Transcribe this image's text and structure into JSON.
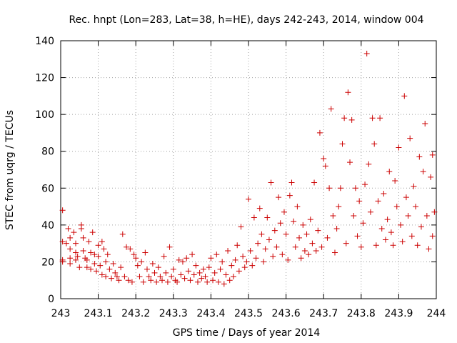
{
  "chart_data": {
    "type": "scatter",
    "title": "Rec. hnpt (Lon=283, Lat=38, h=HE), days 242-243, 2014, window 004",
    "xlabel": "GPS time / Days of year 2014",
    "ylabel": "STEC from uqrg / TECUs",
    "xlim": [
      243,
      244
    ],
    "ylim": [
      0,
      140
    ],
    "xticks": [
      "243",
      "243.1",
      "243.2",
      "243.3",
      "243.4",
      "243.5",
      "243.6",
      "243.7",
      "243.8",
      "243.9",
      "244"
    ],
    "yticks": [
      "0",
      "20",
      "40",
      "60",
      "80",
      "100",
      "120",
      "140"
    ],
    "grid": true,
    "marker": "plus",
    "color": "#cc0000",
    "series": [
      {
        "points": [
          [
            243.005,
            48
          ],
          [
            243.005,
            31
          ],
          [
            243.005,
            21
          ],
          [
            243.005,
            20
          ],
          [
            243.015,
            30
          ],
          [
            243.02,
            38
          ],
          [
            243.025,
            33
          ],
          [
            243.025,
            27
          ],
          [
            243.025,
            22
          ],
          [
            243.025,
            19
          ],
          [
            243.035,
            36
          ],
          [
            243.04,
            30
          ],
          [
            243.04,
            25
          ],
          [
            243.04,
            21
          ],
          [
            243.045,
            23
          ],
          [
            243.05,
            17
          ],
          [
            243.055,
            40
          ],
          [
            243.055,
            38
          ],
          [
            243.06,
            33
          ],
          [
            243.06,
            26
          ],
          [
            243.065,
            22
          ],
          [
            243.07,
            21
          ],
          [
            243.07,
            17
          ],
          [
            243.075,
            31
          ],
          [
            243.08,
            25
          ],
          [
            243.08,
            16
          ],
          [
            243.085,
            36
          ],
          [
            243.09,
            24
          ],
          [
            243.09,
            19
          ],
          [
            243.095,
            15
          ],
          [
            243.1,
            29
          ],
          [
            243.1,
            23
          ],
          [
            243.105,
            18
          ],
          [
            243.11,
            31
          ],
          [
            243.11,
            13
          ],
          [
            243.115,
            27
          ],
          [
            243.12,
            20
          ],
          [
            243.12,
            12
          ],
          [
            243.125,
            24
          ],
          [
            243.13,
            16
          ],
          [
            243.135,
            11
          ],
          [
            243.14,
            19
          ],
          [
            243.145,
            14
          ],
          [
            243.15,
            12
          ],
          [
            243.155,
            10
          ],
          [
            243.16,
            17
          ],
          [
            243.165,
            35
          ],
          [
            243.17,
            12
          ],
          [
            243.175,
            28
          ],
          [
            243.18,
            10
          ],
          [
            243.185,
            27
          ],
          [
            243.19,
            9
          ],
          [
            243.195,
            24
          ],
          [
            243.2,
            22
          ],
          [
            243.205,
            18
          ],
          [
            243.21,
            12
          ],
          [
            243.215,
            20
          ],
          [
            243.22,
            9
          ],
          [
            243.225,
            25
          ],
          [
            243.23,
            16
          ],
          [
            243.235,
            12
          ],
          [
            243.24,
            10
          ],
          [
            243.245,
            19
          ],
          [
            243.25,
            14
          ],
          [
            243.255,
            9
          ],
          [
            243.26,
            17
          ],
          [
            243.265,
            12
          ],
          [
            243.27,
            10
          ],
          [
            243.275,
            23
          ],
          [
            243.28,
            14
          ],
          [
            243.285,
            9
          ],
          [
            243.29,
            28
          ],
          [
            243.295,
            12
          ],
          [
            243.3,
            16
          ],
          [
            243.305,
            10
          ],
          [
            243.31,
            9
          ],
          [
            243.315,
            21
          ],
          [
            243.32,
            13
          ],
          [
            243.325,
            20
          ],
          [
            243.33,
            11
          ],
          [
            243.335,
            22
          ],
          [
            243.34,
            15
          ],
          [
            243.345,
            10
          ],
          [
            243.35,
            24
          ],
          [
            243.355,
            13
          ],
          [
            243.36,
            18
          ],
          [
            243.365,
            9
          ],
          [
            243.37,
            14
          ],
          [
            243.375,
            11
          ],
          [
            243.38,
            16
          ],
          [
            243.385,
            12
          ],
          [
            243.39,
            9
          ],
          [
            243.395,
            17
          ],
          [
            243.4,
            22
          ],
          [
            243.405,
            10
          ],
          [
            243.41,
            14
          ],
          [
            243.415,
            24
          ],
          [
            243.42,
            9
          ],
          [
            243.425,
            16
          ],
          [
            243.43,
            20
          ],
          [
            243.435,
            8
          ],
          [
            243.44,
            13
          ],
          [
            243.445,
            26
          ],
          [
            243.45,
            10
          ],
          [
            243.455,
            18
          ],
          [
            243.46,
            12
          ],
          [
            243.465,
            21
          ],
          [
            243.47,
            29
          ],
          [
            243.475,
            15
          ],
          [
            243.48,
            39
          ],
          [
            243.485,
            23
          ],
          [
            243.49,
            17
          ],
          [
            243.495,
            20
          ],
          [
            243.5,
            54
          ],
          [
            243.505,
            26
          ],
          [
            243.51,
            18
          ],
          [
            243.515,
            44
          ],
          [
            243.52,
            22
          ],
          [
            243.525,
            30
          ],
          [
            243.53,
            49
          ],
          [
            243.535,
            35
          ],
          [
            243.54,
            20
          ],
          [
            243.545,
            27
          ],
          [
            243.55,
            44
          ],
          [
            243.555,
            32
          ],
          [
            243.56,
            63
          ],
          [
            243.565,
            23
          ],
          [
            243.57,
            37
          ],
          [
            243.575,
            28
          ],
          [
            243.58,
            55
          ],
          [
            243.585,
            41
          ],
          [
            243.59,
            24
          ],
          [
            243.595,
            47
          ],
          [
            243.6,
            35
          ],
          [
            243.605,
            21
          ],
          [
            243.61,
            56
          ],
          [
            243.615,
            63
          ],
          [
            243.62,
            42
          ],
          [
            243.625,
            28
          ],
          [
            243.63,
            50
          ],
          [
            243.635,
            33
          ],
          [
            243.64,
            22
          ],
          [
            243.645,
            40
          ],
          [
            243.65,
            26
          ],
          [
            243.655,
            35
          ],
          [
            243.66,
            24
          ],
          [
            243.665,
            43
          ],
          [
            243.67,
            30
          ],
          [
            243.675,
            63
          ],
          [
            243.68,
            26
          ],
          [
            243.685,
            37
          ],
          [
            243.69,
            90
          ],
          [
            243.695,
            28
          ],
          [
            243.7,
            76
          ],
          [
            243.705,
            72
          ],
          [
            243.71,
            33
          ],
          [
            243.715,
            60
          ],
          [
            243.72,
            103
          ],
          [
            243.725,
            45
          ],
          [
            243.73,
            25
          ],
          [
            243.735,
            38
          ],
          [
            243.74,
            50
          ],
          [
            243.745,
            60
          ],
          [
            243.75,
            84
          ],
          [
            243.755,
            98
          ],
          [
            243.76,
            30
          ],
          [
            243.765,
            112
          ],
          [
            243.77,
            74
          ],
          [
            243.775,
            97
          ],
          [
            243.78,
            45
          ],
          [
            243.785,
            60
          ],
          [
            243.79,
            34
          ],
          [
            243.795,
            53
          ],
          [
            243.8,
            28
          ],
          [
            243.805,
            41
          ],
          [
            243.81,
            62
          ],
          [
            243.815,
            133
          ],
          [
            243.82,
            73
          ],
          [
            243.825,
            47
          ],
          [
            243.83,
            98
          ],
          [
            243.835,
            84
          ],
          [
            243.84,
            29
          ],
          [
            243.845,
            53
          ],
          [
            243.85,
            98
          ],
          [
            243.855,
            38
          ],
          [
            243.86,
            57
          ],
          [
            243.865,
            32
          ],
          [
            243.87,
            43
          ],
          [
            243.875,
            69
          ],
          [
            243.88,
            36
          ],
          [
            243.885,
            29
          ],
          [
            243.89,
            64
          ],
          [
            243.895,
            50
          ],
          [
            243.9,
            82
          ],
          [
            243.905,
            40
          ],
          [
            243.91,
            31
          ],
          [
            243.915,
            110
          ],
          [
            243.92,
            55
          ],
          [
            243.925,
            45
          ],
          [
            243.93,
            87
          ],
          [
            243.935,
            34
          ],
          [
            243.94,
            61
          ],
          [
            243.945,
            50
          ],
          [
            243.95,
            29
          ],
          [
            243.955,
            77
          ],
          [
            243.96,
            39
          ],
          [
            243.965,
            69
          ],
          [
            243.97,
            95
          ],
          [
            243.975,
            45
          ],
          [
            243.98,
            27
          ],
          [
            243.985,
            66
          ],
          [
            243.99,
            78
          ],
          [
            243.99,
            34
          ],
          [
            243.995,
            47
          ]
        ]
      }
    ]
  }
}
